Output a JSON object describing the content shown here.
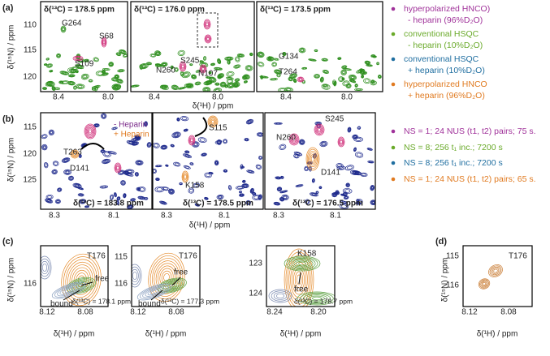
{
  "a": {
    "label": "(a)",
    "ylabel": "δ(¹⁵N) / ppm",
    "xlabel": "δ(¹H) / ppm",
    "yticks": [
      "110",
      "115",
      "120"
    ],
    "spectra": [
      {
        "title": "δ(¹³C) = 178.5 ppm",
        "peaks": [
          "G264",
          "S68",
          "S109"
        ],
        "xticks": [
          "8.4",
          "8.0"
        ]
      },
      {
        "title": "δ(¹³C) = 176.0 ppm",
        "peaks": [
          "S245",
          "N260",
          "N107"
        ],
        "xticks": [
          "8.4",
          "8.0"
        ]
      },
      {
        "title": "δ(¹³C) = 173.5 ppm",
        "peaks": [
          "G134",
          "T264"
        ],
        "xticks": [
          "8.4",
          "8.0"
        ]
      }
    ],
    "legend": [
      {
        "lines": [
          "hyperpolarized HNCO)",
          "- heparin (96%D₂O)"
        ]
      },
      {
        "lines": [
          "conventional HSQC",
          "- heparin (10%D₂O)"
        ]
      },
      {
        "lines": [
          "conventional HSQC",
          "+ heparin (10%D₂O)"
        ]
      },
      {
        "lines": [
          "hyperpolarized HNCO",
          "+ heparin (96%D₂O)"
        ]
      }
    ]
  },
  "b": {
    "label": "(b)",
    "ylabel": "δ(¹⁵N) / ppm",
    "xlabel": "δ(¹H) / ppm",
    "yticks": [
      "115",
      "120",
      "125"
    ],
    "inset_legend": [
      "- Heparin",
      "+ Heparin"
    ],
    "spectra": [
      {
        "title": "δ(¹³C) = 183.8 ppm",
        "peaks": [
          "T263",
          "D141"
        ],
        "xticks": [
          "8.3",
          "8.1"
        ]
      },
      {
        "title": "δ(¹³C) = 178.5 ppm",
        "peaks": [
          "S115",
          "K158"
        ],
        "xticks": [
          "8.3",
          "8.1"
        ]
      },
      {
        "title": "δ(¹³C) = 176.5 ppm",
        "peaks": [
          "N260",
          "S245",
          "D141"
        ],
        "xticks": [
          "8.3",
          "8.1"
        ]
      }
    ],
    "legend": [
      "NS = 1; 24 NUS (t1, t2) pairs; 75 s.",
      "NS = 8; 256 t₁ inc.; 7200 s",
      "NS = 8; 256 t₁ inc.; 7200 s",
      "NS = 1; 24 NUS (t1, t2) pairs; 65 s."
    ]
  },
  "c": {
    "label": "(c)",
    "ylabel": "δ(¹⁵N) / ppm",
    "xlabel": "δ(¹H) / ppm",
    "spectra": [
      {
        "residue": "T176",
        "yticks": [
          "116"
        ],
        "xticks": [
          "8.12",
          "8.08"
        ],
        "annotations": [
          "free",
          "bound"
        ],
        "note": "δ(¹³C) = 178.1 ppm"
      },
      {
        "residue": "T176",
        "yticks": [
          "115",
          "116"
        ],
        "xticks": [
          "8.12",
          "8.08"
        ],
        "annotations": [
          "free",
          "bound"
        ],
        "note": "δ(¹³C) = 177.3 ppm"
      },
      {
        "residue": "K158",
        "yticks": [
          "123",
          "124"
        ],
        "xticks": [
          "8.24",
          "8.20"
        ],
        "annotations": [
          "free"
        ],
        "note": "δ(¹³C) = 178.7 ppm"
      }
    ]
  },
  "d": {
    "label": "(d)",
    "ylabel": "δ(¹⁵N) / ppm",
    "xlabel": "δ(¹H) / ppm",
    "residue": "T176",
    "yticks": [
      "115",
      "116"
    ],
    "xticks": [
      "8.12",
      "8.08"
    ]
  }
}
